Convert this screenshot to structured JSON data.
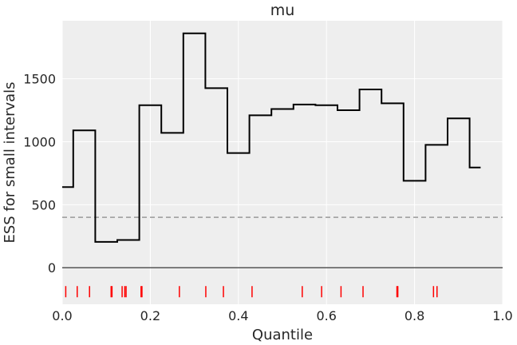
{
  "chart_data": {
    "type": "line",
    "step": true,
    "title": "mu",
    "xlabel": "Quantile",
    "ylabel": "ESS for small intervals",
    "xlim": [
      0.0,
      1.0
    ],
    "ylim": [
      -290,
      1960
    ],
    "xticks": [
      0.0,
      0.2,
      0.4,
      0.6,
      0.8,
      1.0
    ],
    "xtick_labels": [
      "0.0",
      "0.2",
      "0.4",
      "0.6",
      "0.8",
      "1.0"
    ],
    "yticks": [
      0,
      500,
      1000,
      1500
    ],
    "ytick_labels": [
      "0",
      "500",
      "1000",
      "1500"
    ],
    "grid": true,
    "series": [
      {
        "style": "step",
        "color": "#000000",
        "x": [
          0.0,
          0.025,
          0.075,
          0.125,
          0.175,
          0.225,
          0.275,
          0.325,
          0.375,
          0.425,
          0.475,
          0.525,
          0.575,
          0.625,
          0.675,
          0.725,
          0.775,
          0.825,
          0.875,
          0.925,
          0.95
        ],
        "values": [
          640,
          1090,
          205,
          220,
          1290,
          1070,
          1860,
          1425,
          910,
          1210,
          1260,
          1295,
          1290,
          1250,
          1415,
          1305,
          690,
          975,
          1185,
          795,
          795
        ]
      }
    ],
    "reference_line": {
      "y": 400,
      "style": "dashed",
      "color": "#999999"
    },
    "zero_line": {
      "y": 0,
      "color": "#555555"
    },
    "rug": {
      "y": -190,
      "color": "#ff0000",
      "x": [
        0.008,
        0.034,
        0.062,
        0.111,
        0.113,
        0.136,
        0.142,
        0.145,
        0.179,
        0.181,
        0.266,
        0.326,
        0.366,
        0.431,
        0.545,
        0.589,
        0.633,
        0.683,
        0.76,
        0.762,
        0.843,
        0.851
      ]
    }
  }
}
